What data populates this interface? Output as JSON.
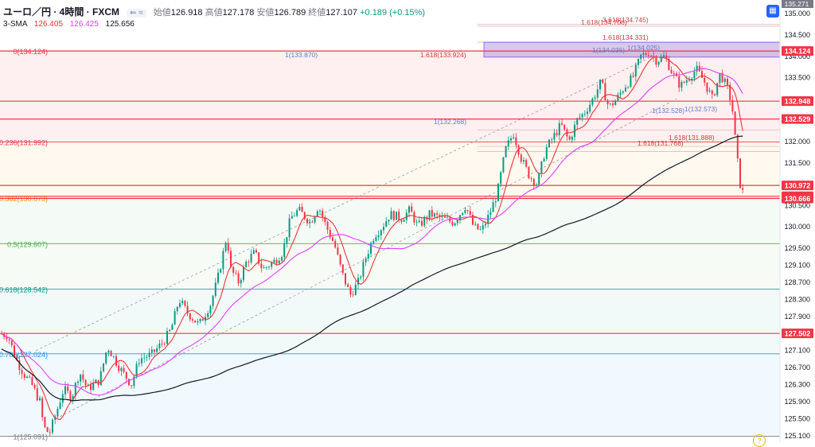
{
  "header": {
    "symbol": "ユーロ／円 · 4時間 · FXCM",
    "open_label": "始値",
    "open": "126.918",
    "high_label": "高値",
    "high": "127.178",
    "low_label": "安値",
    "low": "126.789",
    "close_label": "終値",
    "close": "127.107",
    "change": "+0.189 (+0.15%)"
  },
  "indicator": {
    "name": "3-SMA",
    "v1": "126.405",
    "v2": "126.425",
    "v3": "125.656"
  },
  "chart_data": {
    "type": "candlestick",
    "title": "",
    "ylim": [
      124.95,
      135.32
    ],
    "y_ticks": [
      "135.000",
      "134.500",
      "134.000",
      "133.500",
      "133.000",
      "132.500",
      "132.000",
      "131.500",
      "131.000",
      "130.500",
      "130.000",
      "129.500",
      "129.100",
      "128.700",
      "128.300",
      "127.900",
      "127.500",
      "127.100",
      "126.700",
      "126.300",
      "125.900",
      "125.500",
      "125.100"
    ],
    "price_labels": [
      {
        "value": "134.124",
        "color": "#f23645"
      },
      {
        "value": "132.948",
        "color": "#f23645"
      },
      {
        "value": "132.529",
        "color": "#f23645"
      },
      {
        "value": "130.972",
        "color": "#f23645"
      },
      {
        "value": "130.719",
        "color": "#f23645"
      },
      {
        "value": "130.666",
        "color": "#f23645"
      },
      {
        "value": "127.502",
        "color": "#f23645"
      }
    ],
    "top_label": "135.271",
    "fib_levels": [
      {
        "label": "0(134.124)",
        "price": 134.124
      },
      {
        "label": "0.236(131.992)",
        "price": 131.992
      },
      {
        "label": "0.382(130.673)",
        "price": 130.673
      },
      {
        "label": "0.5(129.607)",
        "price": 129.607
      },
      {
        "label": "0.618(128.542)",
        "price": 128.542
      },
      {
        "label": "0.786(127.024)",
        "price": 127.024
      },
      {
        "label": "1(125.091)",
        "price": 125.091
      }
    ],
    "annotations": [
      {
        "text": "1(133.870)",
        "price": 133.87,
        "color": "#5b7fc7"
      },
      {
        "text": "1.618(133.924)",
        "price": 133.924,
        "color": "#d23a3a"
      },
      {
        "text": "1.618(134.706)",
        "price": 134.706,
        "color": "#d23a3a"
      },
      {
        "text": "3.618(134.745)",
        "price": 134.745,
        "color": "#d23a3a"
      },
      {
        "text": "1.618(134.331)",
        "price": 134.331,
        "color": "#d23a3a"
      },
      {
        "text": "1(134.025)",
        "price": 134.025,
        "color": "#5b7fc7"
      },
      {
        "text": "1(134.036)",
        "price": 134.036,
        "color": "#5b7fc7"
      },
      {
        "text": "1(132.268)",
        "price": 132.268,
        "color": "#5b7fc7"
      },
      {
        "text": "1(132.528)",
        "price": 132.528,
        "color": "#5b7fc7"
      },
      {
        "text": "1(132.573)",
        "price": 132.573,
        "color": "#5b7fc7"
      },
      {
        "text": "1.618(131.888)",
        "price": 131.888,
        "color": "#d23a3a"
      },
      {
        "text": "1.618(131.768)",
        "price": 131.768,
        "color": "#d23a3a"
      }
    ],
    "horizontal_lines": [
      134.124,
      132.948,
      132.529,
      130.972,
      130.719,
      130.666,
      127.502
    ],
    "trend_path": [
      [
        0,
        127.5
      ],
      [
        10,
        127.45
      ],
      [
        20,
        126.9
      ],
      [
        30,
        126.55
      ],
      [
        40,
        126.3
      ],
      [
        50,
        125.9
      ],
      [
        55,
        125.3
      ],
      [
        62,
        125.15
      ],
      [
        70,
        125.6
      ],
      [
        80,
        126.2
      ],
      [
        90,
        126.0
      ],
      [
        100,
        126.6
      ],
      [
        110,
        126.2
      ],
      [
        125,
        126.4
      ],
      [
        135,
        127.2
      ],
      [
        150,
        126.7
      ],
      [
        165,
        126.3
      ],
      [
        175,
        126.9
      ],
      [
        190,
        127.0
      ],
      [
        205,
        127.3
      ],
      [
        215,
        127.6
      ],
      [
        225,
        128.3
      ],
      [
        235,
        128.0
      ],
      [
        250,
        127.7
      ],
      [
        265,
        128.2
      ],
      [
        275,
        128.9
      ],
      [
        285,
        129.8
      ],
      [
        290,
        129.0
      ],
      [
        300,
        128.7
      ],
      [
        310,
        129.2
      ],
      [
        320,
        129.4
      ],
      [
        330,
        129.0
      ],
      [
        345,
        129.2
      ],
      [
        355,
        129.4
      ],
      [
        365,
        130.2
      ],
      [
        375,
        130.4
      ],
      [
        390,
        130.1
      ],
      [
        400,
        130.5
      ],
      [
        410,
        130.0
      ],
      [
        420,
        129.6
      ],
      [
        430,
        128.9
      ],
      [
        440,
        128.4
      ],
      [
        450,
        128.7
      ],
      [
        460,
        129.3
      ],
      [
        470,
        129.8
      ],
      [
        480,
        130.0
      ],
      [
        490,
        130.3
      ],
      [
        505,
        130.2
      ],
      [
        515,
        130.4
      ],
      [
        525,
        130.0
      ],
      [
        540,
        130.3
      ],
      [
        555,
        130.2
      ],
      [
        570,
        130.1
      ],
      [
        585,
        130.5
      ],
      [
        595,
        130.0
      ],
      [
        605,
        129.9
      ],
      [
        615,
        130.3
      ],
      [
        625,
        130.8
      ],
      [
        635,
        131.8
      ],
      [
        645,
        132.2
      ],
      [
        655,
        131.6
      ],
      [
        665,
        131.2
      ],
      [
        675,
        131.0
      ],
      [
        685,
        131.8
      ],
      [
        695,
        132.1
      ],
      [
        705,
        132.4
      ],
      [
        715,
        132.0
      ],
      [
        725,
        132.5
      ],
      [
        735,
        132.7
      ],
      [
        745,
        133.0
      ],
      [
        755,
        133.4
      ],
      [
        765,
        132.8
      ],
      [
        775,
        133.0
      ],
      [
        785,
        133.3
      ],
      [
        795,
        133.5
      ],
      [
        805,
        134.0
      ],
      [
        815,
        134.1
      ],
      [
        825,
        133.9
      ],
      [
        835,
        134.0
      ],
      [
        845,
        133.6
      ],
      [
        855,
        133.3
      ],
      [
        865,
        133.5
      ],
      [
        875,
        133.7
      ],
      [
        885,
        133.4
      ],
      [
        895,
        133.0
      ],
      [
        905,
        133.6
      ],
      [
        915,
        133.2
      ],
      [
        920,
        132.8
      ],
      [
        925,
        131.8
      ],
      [
        930,
        131.0
      ],
      [
        935,
        130.7
      ]
    ]
  },
  "colors": {
    "up_candle": "#089981",
    "down_candle": "#f23645",
    "sma_short": "#e53935",
    "sma_mid": "#e040fb",
    "sma_long": "#131722"
  },
  "toolbar": {
    "calendar_icon": "calendar-icon",
    "help_icon": "help-icon"
  }
}
